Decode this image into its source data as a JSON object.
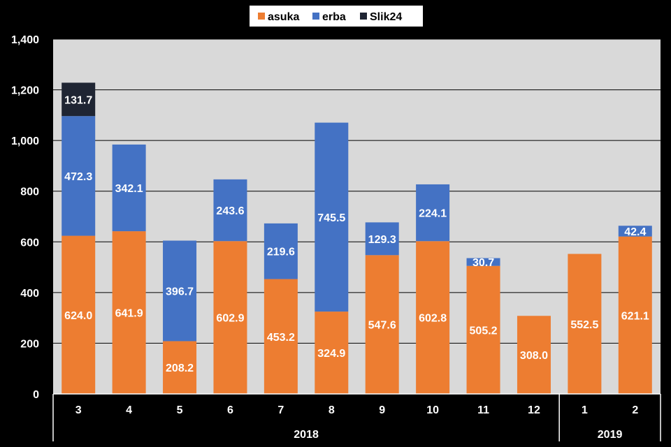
{
  "chart_data": {
    "type": "bar",
    "stacked": true,
    "categories": [
      "3",
      "4",
      "5",
      "6",
      "7",
      "8",
      "9",
      "10",
      "11",
      "12",
      "1",
      "2"
    ],
    "groups": [
      {
        "label": "2018",
        "categories": [
          "3",
          "4",
          "5",
          "6",
          "7",
          "8",
          "9",
          "10",
          "11",
          "12"
        ]
      },
      {
        "label": "2019",
        "categories": [
          "1",
          "2"
        ]
      }
    ],
    "series": [
      {
        "name": "asuka",
        "color": "#ED7D31",
        "values": [
          624.0,
          641.9,
          208.2,
          602.9,
          453.2,
          324.9,
          547.6,
          602.8,
          505.2,
          308.0,
          552.5,
          621.1
        ]
      },
      {
        "name": "erba",
        "color": "#4472C4",
        "values": [
          472.3,
          342.1,
          396.7,
          243.6,
          219.6,
          745.5,
          129.3,
          224.1,
          30.7,
          null,
          null,
          42.4
        ]
      },
      {
        "name": "Slik24",
        "color": "#1F2533",
        "values": [
          131.7,
          null,
          null,
          null,
          null,
          null,
          null,
          null,
          null,
          null,
          null,
          null
        ]
      }
    ],
    "data_labels": [
      [
        "624.0",
        "641.9",
        "208.2",
        "602.9",
        "453.2",
        "324.9",
        "547.6",
        "602.8",
        "505.2",
        "308.0",
        "552.5",
        "621.1"
      ],
      [
        "472.3",
        "342.1",
        "396.7",
        "243.6",
        "219.6",
        "745.5",
        "129.3",
        "224.1",
        "30.7",
        "",
        "",
        "42.4"
      ],
      [
        "131.7",
        "",
        "",
        "",
        "",
        "",
        "",
        "",
        "",
        "",
        "",
        ""
      ]
    ],
    "unlabeled_values": [
      null,
      null,
      null,
      null,
      null,
      null,
      null,
      null,
      null,
      null,
      null,
      null
    ],
    "ylim": [
      0,
      1400
    ],
    "yticks": [
      0,
      200,
      400,
      600,
      800,
      1000,
      1200,
      1400
    ],
    "ytick_labels": [
      "0",
      "200",
      "400",
      "600",
      "800",
      "1,000",
      "1,200",
      "1,400"
    ],
    "title": "",
    "xlabel": "",
    "ylabel": "",
    "grid": true,
    "legend": "top",
    "colors": {
      "background": "#000000",
      "plot_area": "#D9D9D9",
      "grid": "#000000",
      "text": "#FFFFFF"
    }
  }
}
